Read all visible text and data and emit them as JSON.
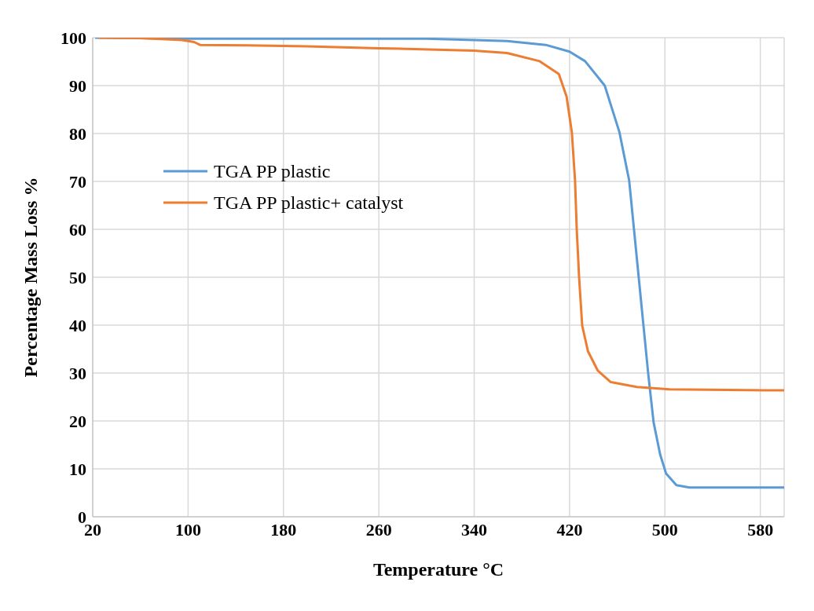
{
  "chart_data": {
    "type": "line",
    "xlabel": "Temperature °C",
    "ylabel": "Percentage Mass Loss %",
    "xlim": [
      20,
      600
    ],
    "xticks": [
      20,
      100,
      180,
      260,
      340,
      420,
      500,
      580
    ],
    "ylim": [
      0,
      100
    ],
    "yticks": [
      0,
      10,
      20,
      30,
      40,
      50,
      60,
      70,
      80,
      90,
      100
    ],
    "grid": true,
    "legend": "top left",
    "marker": "none",
    "line_style": "solid",
    "series": [
      {
        "name": "TGA PP plastic",
        "color": "#5b9bd5",
        "x": [
          22,
          100,
          200,
          300,
          340,
          367.5,
          400,
          420,
          433,
          449.5,
          461.8,
          470,
          474,
          478,
          482,
          486,
          490.5,
          496,
          501,
          509.6,
          520.5,
          560,
          600
        ],
        "values": [
          100,
          99.8,
          99.8,
          99.8,
          99.5,
          99.3,
          98.5,
          97.1,
          95.1,
          90,
          80.3,
          70.2,
          60.1,
          50,
          39.9,
          29.8,
          19.7,
          13,
          9,
          6.6,
          6.1,
          6.1,
          6.1
        ]
      },
      {
        "name": "TGA PP plastic+ catalyst",
        "color": "#ed7d31",
        "x": [
          25,
          60,
          95,
          105,
          110,
          150,
          200,
          260,
          340,
          367.5,
          394.9,
          411,
          417.5,
          421.9,
          424.6,
          426,
          428,
          430.6,
          435.5,
          443.7,
          454.6,
          476.5,
          503.8,
          585.7,
          600
        ],
        "values": [
          100,
          99.9,
          99.5,
          99.1,
          98.5,
          98.4,
          98.2,
          97.8,
          97.3,
          96.8,
          95.1,
          92.4,
          87.7,
          80.3,
          70.2,
          60.1,
          50,
          39.9,
          34.5,
          30.5,
          28.1,
          27.1,
          26.6,
          26.4,
          26.4
        ]
      }
    ]
  }
}
